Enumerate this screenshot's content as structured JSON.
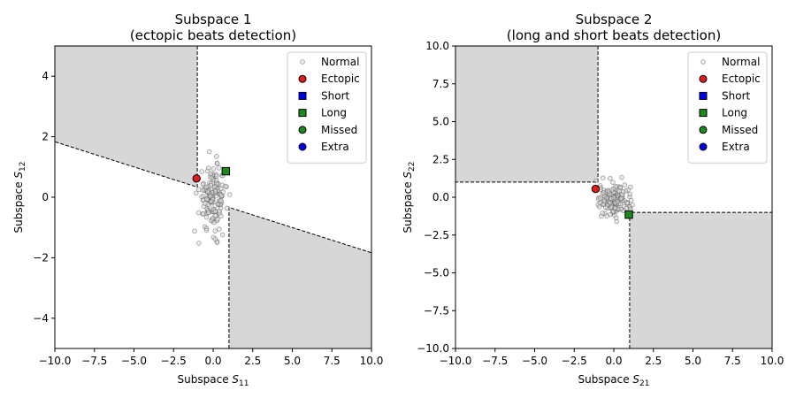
{
  "chart_data": [
    {
      "type": "scatter",
      "title": "Subspace 1",
      "subtitle": "(ectopic beats detection)",
      "xlabel": "Subspace",
      "xlabel_sub": "11",
      "ylabel": "Subspace",
      "ylabel_sub": "12",
      "xlim": [
        -10,
        10
      ],
      "ylim": [
        -5,
        5
      ],
      "xticks": [
        -10,
        -7.5,
        -5,
        -2.5,
        0,
        2.5,
        5,
        7.5,
        10
      ],
      "xtick_labels": [
        "−10.0",
        "−7.5",
        "−5.0",
        "−2.5",
        "0.0",
        "2.5",
        "5.0",
        "7.5",
        "10.0"
      ],
      "yticks": [
        -4,
        -2,
        0,
        2,
        4
      ],
      "ytick_labels": [
        "−4",
        "−2",
        "0",
        "2",
        "4"
      ],
      "grid": false,
      "legend_position": "top-right",
      "shaded_regions": [
        {
          "polygon": [
            [
              -10,
              5
            ],
            [
              -1,
              5
            ],
            [
              -1,
              0.335
            ],
            [
              -10,
              1.835
            ]
          ],
          "color": "#d7d7d7"
        },
        {
          "polygon": [
            [
              1,
              -0.335
            ],
            [
              10,
              -1.835
            ],
            [
              10,
              -5
            ],
            [
              1,
              -5
            ]
          ],
          "color": "#d7d7d7"
        }
      ],
      "boundary_lines": [
        [
          [
            -1,
            5
          ],
          [
            -1,
            0.335
          ],
          [
            -10,
            1.835
          ]
        ],
        [
          [
            1,
            -5
          ],
          [
            1,
            -0.335
          ],
          [
            10,
            -1.835
          ]
        ]
      ],
      "normal_cloud": {
        "center": [
          0,
          0
        ],
        "spread": [
          0.45,
          0.55
        ],
        "count": 150
      },
      "series": [
        {
          "name": "Normal",
          "marker": "circle-hollow",
          "color": "#bbbbbb",
          "points": []
        },
        {
          "name": "Ectopic",
          "marker": "circle",
          "color": "#e41a1c",
          "points": [
            [
              -1.05,
              0.62
            ]
          ]
        },
        {
          "name": "Short",
          "marker": "square",
          "color": "#0000ee",
          "points": []
        },
        {
          "name": "Long",
          "marker": "square",
          "color": "#1a8a1a",
          "points": [
            [
              0.8,
              0.86
            ]
          ]
        },
        {
          "name": "Missed",
          "marker": "circle",
          "color": "#1a8a1a",
          "points": []
        },
        {
          "name": "Extra",
          "marker": "circle",
          "color": "#0000ee",
          "points": []
        }
      ]
    },
    {
      "type": "scatter",
      "title": "Subspace 2",
      "subtitle": "(long and short beats detection)",
      "xlabel": "Subspace",
      "xlabel_sub": "21",
      "ylabel": "Subspace",
      "ylabel_sub": "22",
      "xlim": [
        -10,
        10
      ],
      "ylim": [
        -10,
        10
      ],
      "xticks": [
        -10,
        -7.5,
        -5,
        -2.5,
        0,
        2.5,
        5,
        7.5,
        10
      ],
      "xtick_labels": [
        "−10.0",
        "−7.5",
        "−5.0",
        "−2.5",
        "0.0",
        "2.5",
        "5.0",
        "7.5",
        "10.0"
      ],
      "yticks": [
        -10,
        -7.5,
        -5,
        -2.5,
        0,
        2.5,
        5,
        7.5,
        10
      ],
      "ytick_labels": [
        "−10.0",
        "−7.5",
        "−5.0",
        "−2.5",
        "0.0",
        "2.5",
        "5.0",
        "7.5",
        "10.0"
      ],
      "grid": false,
      "legend_position": "top-right",
      "shaded_regions": [
        {
          "polygon": [
            [
              -10,
              10
            ],
            [
              -1,
              10
            ],
            [
              -1,
              1
            ],
            [
              -10,
              1
            ]
          ],
          "color": "#d7d7d7"
        },
        {
          "polygon": [
            [
              1,
              -1
            ],
            [
              10,
              -1
            ],
            [
              10,
              -10
            ],
            [
              1,
              -10
            ]
          ],
          "color": "#d7d7d7"
        }
      ],
      "boundary_lines": [
        [
          [
            -1,
            10
          ],
          [
            -1,
            1
          ],
          [
            -10,
            1
          ]
        ],
        [
          [
            1,
            -10
          ],
          [
            1,
            -1
          ],
          [
            10,
            -1
          ]
        ]
      ],
      "normal_cloud": {
        "center": [
          0.05,
          -0.15
        ],
        "spread": [
          0.5,
          0.55
        ],
        "count": 150
      },
      "series": [
        {
          "name": "Normal",
          "marker": "circle-hollow",
          "color": "#bbbbbb",
          "points": []
        },
        {
          "name": "Ectopic",
          "marker": "circle",
          "color": "#e41a1c",
          "points": [
            [
              -1.15,
              0.55
            ]
          ]
        },
        {
          "name": "Short",
          "marker": "square",
          "color": "#0000ee",
          "points": []
        },
        {
          "name": "Long",
          "marker": "square",
          "color": "#1a8a1a",
          "points": [
            [
              0.95,
              -1.15
            ]
          ]
        },
        {
          "name": "Missed",
          "marker": "circle",
          "color": "#1a8a1a",
          "points": []
        },
        {
          "name": "Extra",
          "marker": "circle",
          "color": "#0000ee",
          "points": []
        }
      ]
    }
  ]
}
